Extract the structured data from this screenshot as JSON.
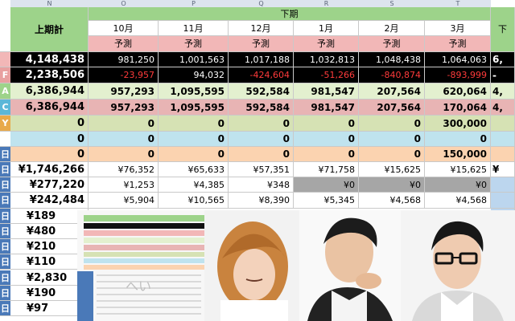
{
  "columns": [
    "N",
    "O",
    "P",
    "Q",
    "R",
    "S",
    "T"
  ],
  "header": {
    "first_half_total": "上期計",
    "second_half": "下期",
    "right_cut": "下",
    "months": [
      "10月",
      "11月",
      "12月",
      "1月",
      "2月",
      "3月"
    ],
    "forecast": "予測"
  },
  "row_labels": [
    "F",
    "A",
    "C",
    "Y",
    "日",
    "日",
    "日",
    "日",
    "日",
    "日",
    "日",
    "日",
    "日",
    "日",
    "日"
  ],
  "rows": [
    {
      "name": "row-1",
      "total": "4,148,438",
      "values": [
        "981,250",
        "1,001,563",
        "1,017,188",
        "1,032,813",
        "1,048,438",
        "1,064,063"
      ],
      "right": "6,"
    },
    {
      "name": "row-2",
      "total": "2,238,506",
      "values": [
        "-23,957",
        "94,032",
        "-424,604",
        "-51,266",
        "-840,874",
        "-893,999"
      ],
      "right": "-"
    },
    {
      "name": "row-3",
      "total": "6,386,944",
      "values": [
        "957,293",
        "1,095,595",
        "592,584",
        "981,547",
        "207,564",
        "620,064"
      ],
      "right": "4,"
    },
    {
      "name": "row-4",
      "total": "6,386,944",
      "values": [
        "957,293",
        "1,095,595",
        "592,584",
        "981,547",
        "207,564",
        "170,064"
      ],
      "right": "4,"
    },
    {
      "name": "row-5",
      "total": "0",
      "values": [
        "0",
        "0",
        "0",
        "0",
        "0",
        "300,000"
      ],
      "right": ""
    },
    {
      "name": "row-6",
      "total": "0",
      "values": [
        "0",
        "0",
        "0",
        "0",
        "0",
        "0"
      ],
      "right": ""
    },
    {
      "name": "row-7",
      "total": "0",
      "values": [
        "0",
        "0",
        "0",
        "0",
        "0",
        "150,000"
      ],
      "right": ""
    },
    {
      "name": "row-8",
      "total": "¥1,746,266",
      "values": [
        "¥76,352",
        "¥65,633",
        "¥57,351",
        "¥71,758",
        "¥15,625",
        "¥15,625"
      ],
      "right": "¥"
    },
    {
      "name": "row-9",
      "total": "¥277,220",
      "values": [
        "¥1,253",
        "¥4,385",
        "¥348",
        "¥0",
        "¥0",
        "¥0"
      ],
      "right": ""
    },
    {
      "name": "row-10",
      "total": "¥242,484",
      "values": [
        "¥5,904",
        "¥10,565",
        "¥8,390",
        "¥5,345",
        "¥4,568",
        "¥4,568"
      ],
      "right": ""
    }
  ],
  "partial_totals": [
    "¥189",
    "¥480",
    "¥210",
    "¥110",
    "¥2,830",
    "¥190",
    "¥97"
  ],
  "thumbnail_text": "へい",
  "colors": {
    "black_row": "#000000",
    "green": "#e3f0cf",
    "pink": "#e8b4b4",
    "olive": "#d6e2b4",
    "cyan": "#bfe3ee",
    "peach": "#fbd3b0",
    "blue_label": "#4a79b8",
    "gray": "#a6a6a6",
    "neg": "#ff3b3b"
  }
}
